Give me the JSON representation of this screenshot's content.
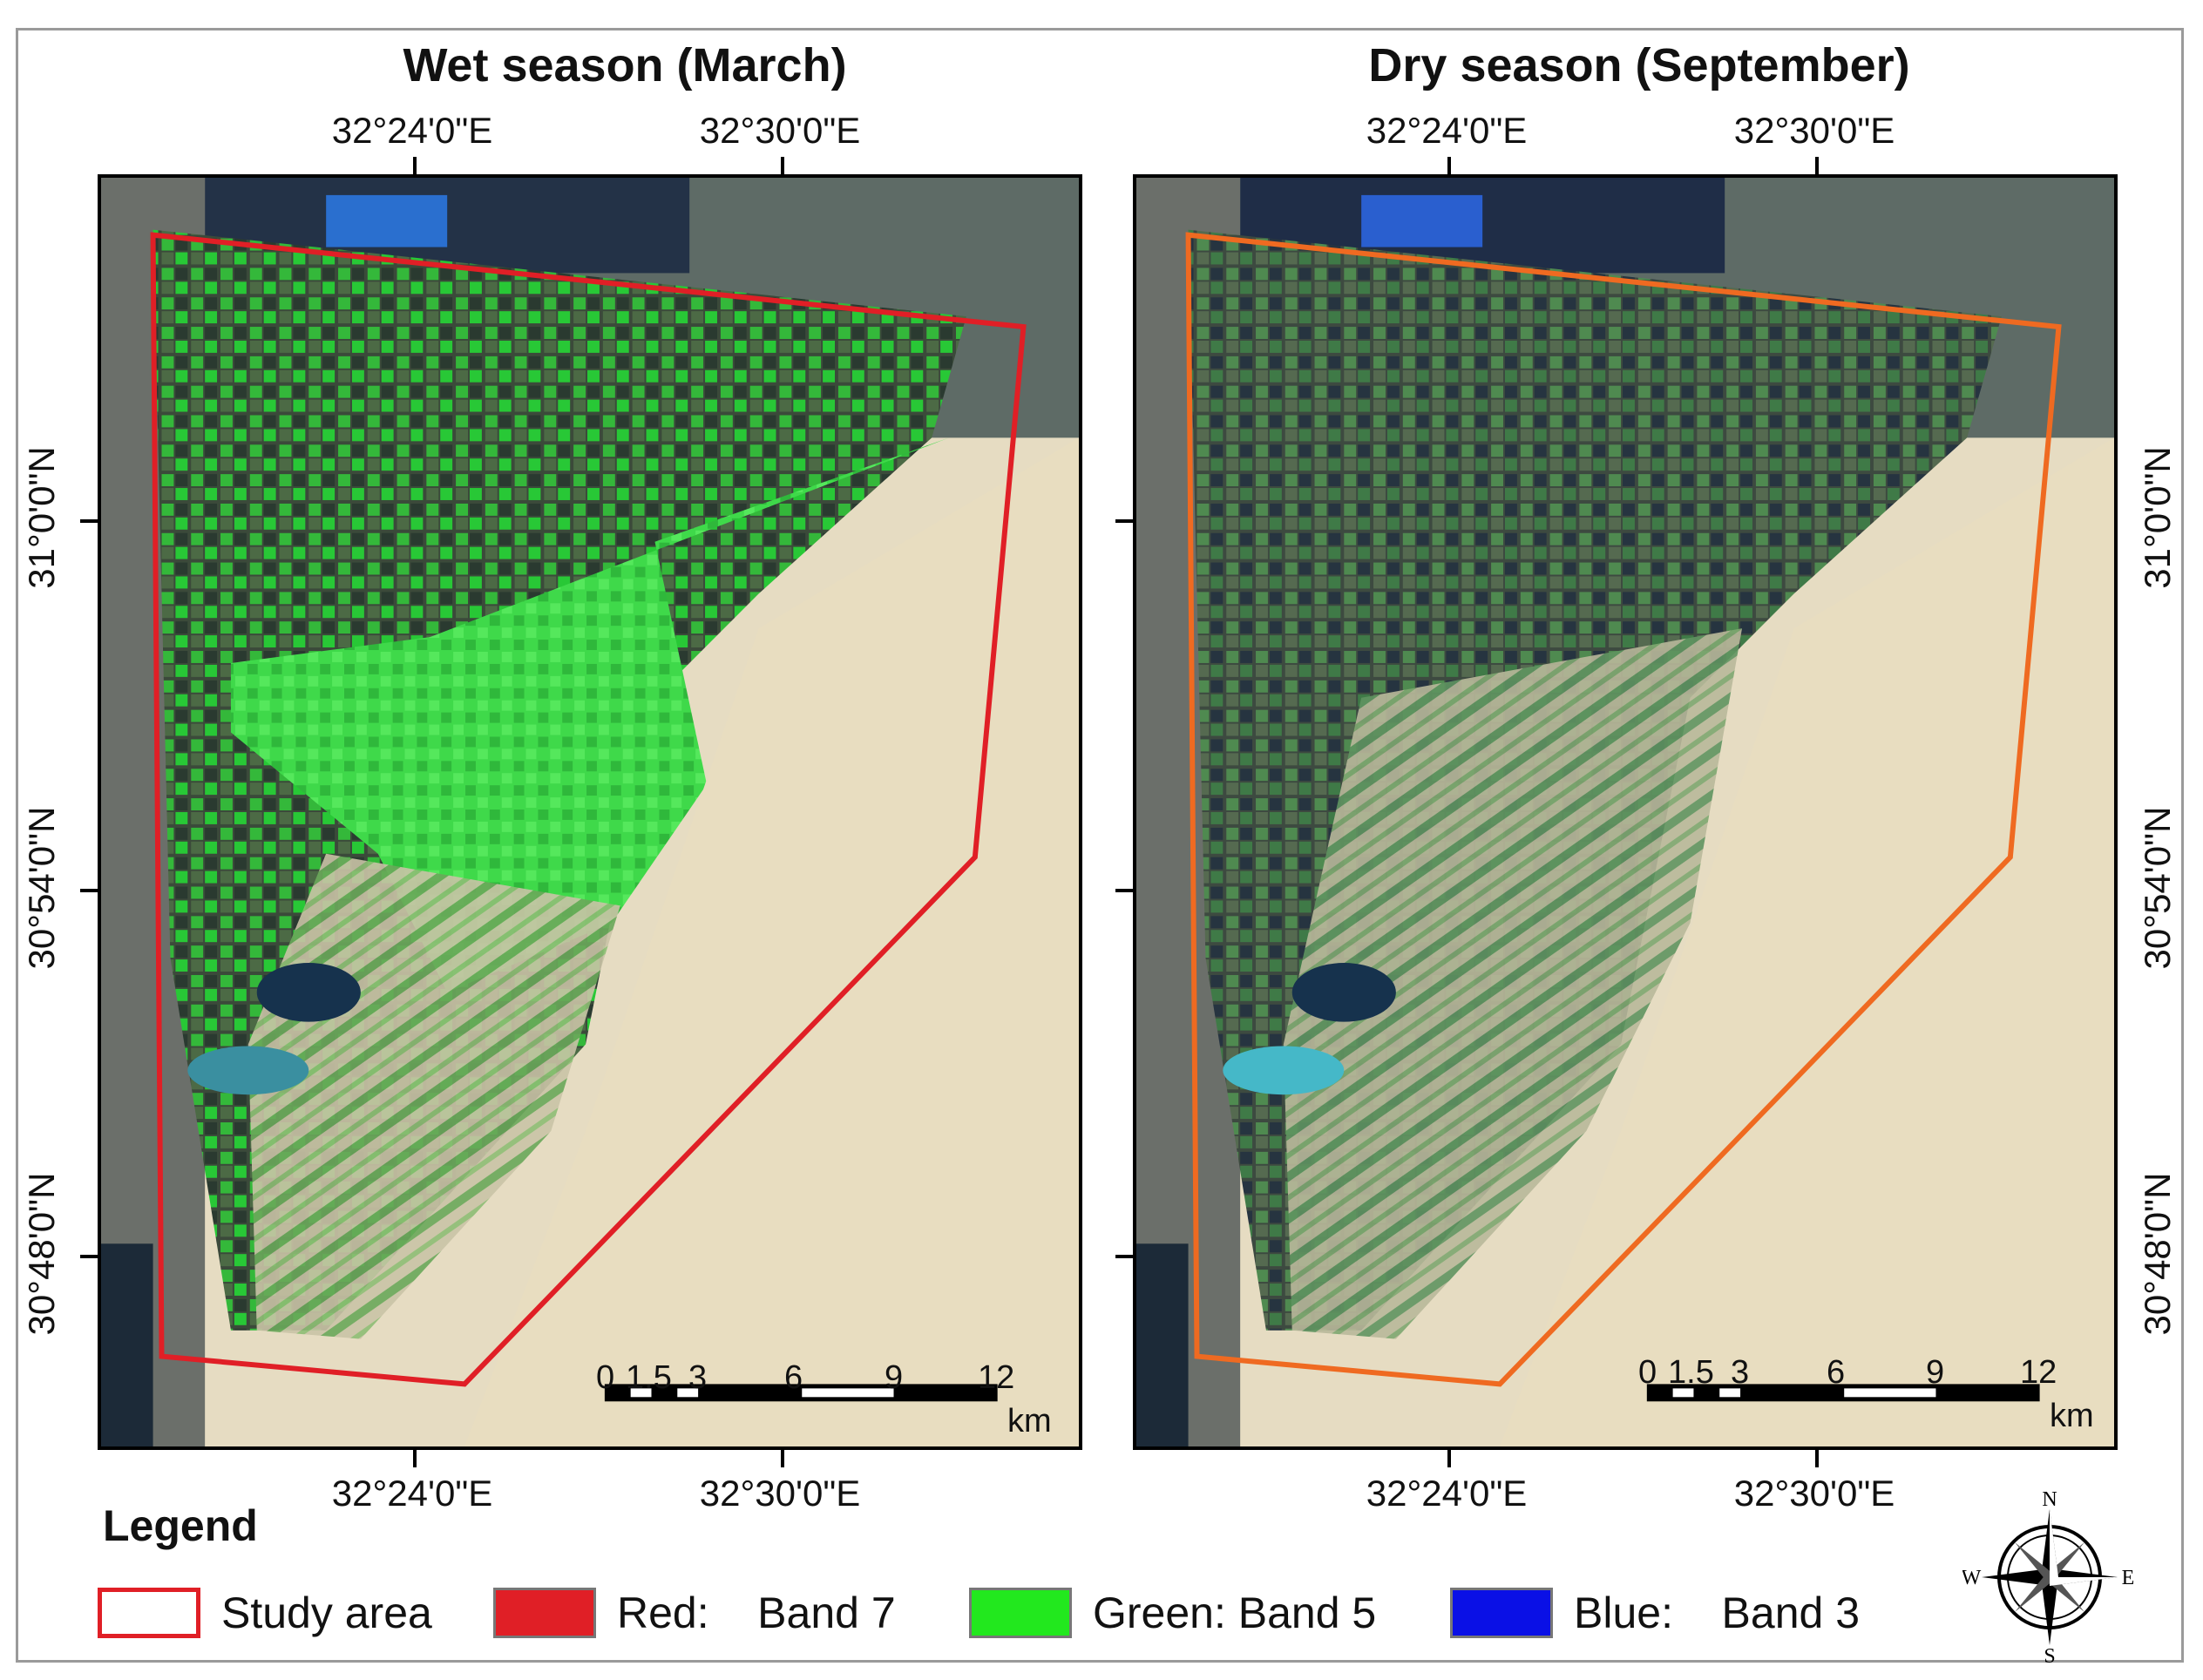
{
  "maps": [
    {
      "title": "Wet season (March)",
      "boundary_color": "#e01f26",
      "vegetation_tint": "#2ec832",
      "top_lon_labels": [
        "32°24'0\"E",
        "32°30'0\"E"
      ],
      "bottom_lon_labels": [
        "32°24'0\"E",
        "32°30'0\"E"
      ],
      "lat_labels": [
        "31°0'0\"N",
        "30°54'0\"N",
        "30°48'0\"N"
      ],
      "scale_labels": [
        "0",
        "1.5",
        "3",
        "6",
        "9",
        "12"
      ],
      "scale_unit": "km"
    },
    {
      "title": "Dry season (September)",
      "boundary_color": "#ef6a21",
      "vegetation_tint": "#4a8f4e",
      "top_lon_labels": [
        "32°24'0\"E",
        "32°30'0\"E"
      ],
      "bottom_lon_labels": [
        "32°24'0\"E",
        "32°30'0\"E"
      ],
      "lat_labels": [
        "31°0'0\"N",
        "30°54'0\"N",
        "30°48'0\"N"
      ],
      "scale_labels": [
        "0",
        "1.5",
        "3",
        "6",
        "9",
        "12"
      ],
      "scale_unit": "km"
    }
  ],
  "legend": {
    "title": "Legend",
    "items": [
      {
        "label": "Study area",
        "color": "#ffffff",
        "border": "#e01f26"
      },
      {
        "label": "Red:    Band 7",
        "color": "#e01f26",
        "border": "#777777"
      },
      {
        "label": "Green: Band 5",
        "color": "#22e81e",
        "border": "#777777"
      },
      {
        "label": "Blue:    Band 3",
        "color": "#0a10e6",
        "border": "#777777"
      }
    ]
  },
  "north_arrow": {
    "n": "N",
    "e": "E",
    "s": "S",
    "w": "W",
    "icon": "compass-rose-icon"
  }
}
